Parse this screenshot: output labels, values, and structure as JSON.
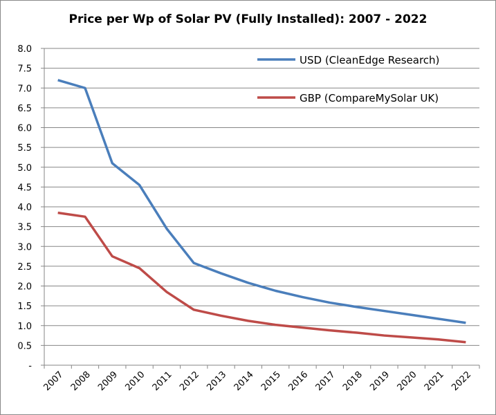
{
  "chart_data": {
    "type": "line",
    "title": "Price per Wp of Solar PV (Fully Installed): 2007 - 2022",
    "xlabel": "",
    "ylabel": "",
    "categories": [
      "2007",
      "2008",
      "2009",
      "2010",
      "2011",
      "2012",
      "2013",
      "2014",
      "2015",
      "2016",
      "2017",
      "2018",
      "2019",
      "2020",
      "2021",
      "2022"
    ],
    "ylim": [
      0,
      8
    ],
    "yticks": [
      "-",
      "0.5",
      "1.0",
      "1.5",
      "2.0",
      "2.5",
      "3.0",
      "3.5",
      "4.0",
      "4.5",
      "5.0",
      "5.5",
      "6.0",
      "6.5",
      "7.0",
      "7.5",
      "8.0"
    ],
    "grid": true,
    "legend": "top-right",
    "series": [
      {
        "name": "USD (CleanEdge Research)",
        "color": "#4a7ebb",
        "values": [
          7.2,
          7.0,
          5.1,
          4.55,
          3.45,
          2.58,
          2.32,
          2.08,
          1.88,
          1.72,
          1.58,
          1.47,
          1.37,
          1.27,
          1.17,
          1.07
        ]
      },
      {
        "name": "GBP (CompareMySolar UK)",
        "color": "#be4b48",
        "values": [
          3.85,
          3.75,
          2.75,
          2.45,
          1.85,
          1.4,
          1.25,
          1.12,
          1.02,
          0.95,
          0.88,
          0.82,
          0.75,
          0.7,
          0.65,
          0.58
        ]
      }
    ]
  }
}
